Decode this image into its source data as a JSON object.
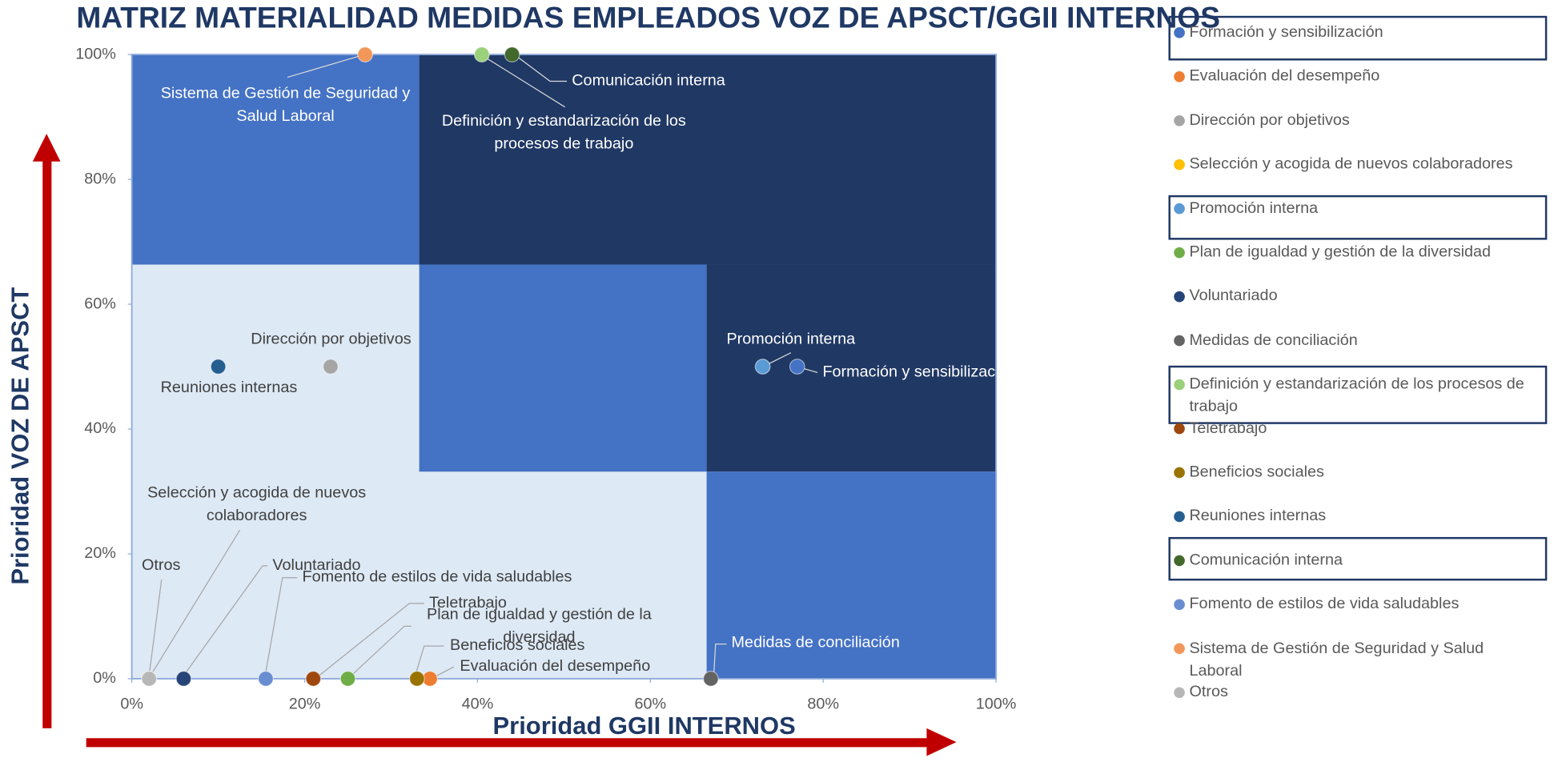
{
  "chart_data": {
    "type": "scatter",
    "title": "MATRIZ MATERIALIDAD MEDIDAS EMPLEADOS VOZ DE APSCT/GGII INTERNOS",
    "xlabel": "Prioridad GGII INTERNOS",
    "ylabel": "Prioridad VOZ DE APSCT",
    "xlim": [
      0,
      100
    ],
    "ylim": [
      0,
      100
    ],
    "xticks": [
      {
        "value": 0,
        "label": "0%"
      },
      {
        "value": 20,
        "label": "20%"
      },
      {
        "value": 40,
        "label": "40%"
      },
      {
        "value": 60,
        "label": "60%"
      },
      {
        "value": 80,
        "label": "80%"
      },
      {
        "value": 100,
        "label": "100%"
      }
    ],
    "yticks": [
      {
        "value": 0,
        "label": "0%"
      },
      {
        "value": 20,
        "label": "20%"
      },
      {
        "value": 40,
        "label": "40%"
      },
      {
        "value": 60,
        "label": "60%"
      },
      {
        "value": 80,
        "label": "80%"
      },
      {
        "value": 100,
        "label": "100%"
      }
    ],
    "series": [
      {
        "name": "Formación y sensibilización",
        "color": "#4472c4",
        "x": [
          77
        ],
        "values": [
          50
        ]
      },
      {
        "name": "Evaluación del desempeño",
        "color": "#ed7d31",
        "x": [
          34.5
        ],
        "values": [
          0
        ]
      },
      {
        "name": "Dirección por objetivos",
        "color": "#a5a5a5",
        "x": [
          23
        ],
        "values": [
          50
        ]
      },
      {
        "name": "Selección y acogida de nuevos colaboradores",
        "color": "#ffc000",
        "x": [
          2
        ],
        "values": [
          0
        ]
      },
      {
        "name": "Promoción interna",
        "color": "#5b9bd5",
        "x": [
          73
        ],
        "values": [
          50
        ]
      },
      {
        "name": "Plan de igualdad y gestión de la diversidad",
        "color": "#70ad47",
        "x": [
          25
        ],
        "values": [
          0
        ]
      },
      {
        "name": "Voluntariado",
        "color": "#264478",
        "x": [
          6
        ],
        "values": [
          0
        ]
      },
      {
        "name": "Medidas de conciliación",
        "color": "#636363",
        "x": [
          67
        ],
        "values": [
          0
        ]
      },
      {
        "name": "Definición y estandarización de los procesos de trabajo",
        "color": "#9bd17a",
        "x": [
          40.5
        ],
        "values": [
          100
        ]
      },
      {
        "name": "Teletrabajo",
        "color": "#9e480e",
        "x": [
          21
        ],
        "values": [
          0
        ]
      },
      {
        "name": "Beneficios sociales",
        "color": "#997300",
        "x": [
          33
        ],
        "values": [
          0
        ]
      },
      {
        "name": "Reuniones internas",
        "color": "#255e91",
        "x": [
          10
        ],
        "values": [
          50
        ]
      },
      {
        "name": "Comunicación interna",
        "color": "#43682b",
        "x": [
          44
        ],
        "values": [
          100
        ]
      },
      {
        "name": "Fomento de estilos de vida saludables",
        "color": "#698ed0",
        "x": [
          15.5
        ],
        "values": [
          0
        ]
      },
      {
        "name": "Sistema de Gestión de Seguridad y Salud Laboral",
        "color": "#f1975a",
        "x": [
          27
        ],
        "values": [
          100
        ]
      },
      {
        "name": "Otros",
        "color": "#b7b7b7",
        "x": [
          2
        ],
        "values": [
          0
        ]
      }
    ]
  }
}
